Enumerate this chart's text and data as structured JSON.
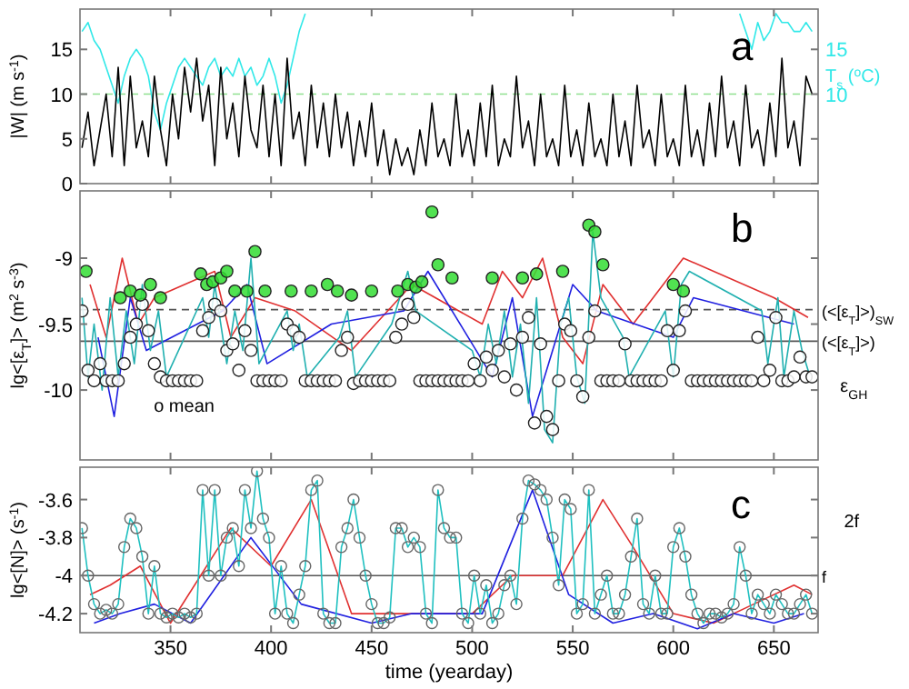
{
  "chart_data": [
    {
      "type": "line",
      "title": "a",
      "ylabel": "|W| (m s$^{-1}$)",
      "y2label": "T$_{s}$ ($^{o}$C)",
      "tick_labels": "y",
      "xlim": [
        305,
        672
      ],
      "xticks": [
        350,
        400,
        450,
        500,
        550,
        600,
        650
      ],
      "ylim": [
        0,
        19.5
      ],
      "yticks": [
        0,
        5,
        10,
        15
      ],
      "y2lim": [
        0,
        19.5
      ],
      "y2ticks": [
        10,
        15
      ],
      "ref_lines": [
        {
          "axis": "y",
          "value": 10,
          "color": "#90e090",
          "line_style": "dashed"
        }
      ],
      "x": [
        306,
        309,
        312,
        315,
        318,
        321,
        324,
        327,
        330,
        333,
        336,
        339,
        342,
        345,
        348,
        351,
        354,
        357,
        360,
        363,
        366,
        369,
        372,
        375,
        378,
        381,
        384,
        387,
        390,
        393,
        396,
        399,
        402,
        405,
        408,
        411,
        414,
        417,
        420,
        423,
        426,
        429,
        432,
        435,
        438,
        441,
        444,
        447,
        450,
        453,
        456,
        459,
        462,
        465,
        468,
        471,
        474,
        477,
        480,
        483,
        486,
        489,
        492,
        495,
        498,
        501,
        504,
        507,
        510,
        513,
        516,
        519,
        522,
        525,
        528,
        531,
        534,
        537,
        540,
        543,
        546,
        549,
        552,
        555,
        558,
        561,
        564,
        567,
        570,
        573,
        576,
        579,
        582,
        585,
        588,
        591,
        594,
        597,
        600,
        603,
        606,
        609,
        612,
        615,
        618,
        621,
        624,
        627,
        630,
        633,
        636,
        639,
        642,
        645,
        648,
        651,
        654,
        657,
        660,
        663,
        666,
        669
      ],
      "series": [
        {
          "axis": "y2",
          "color": "#30e8e8",
          "x": [
            306,
            309,
            312,
            315,
            318,
            321,
            324,
            327,
            330,
            333,
            336,
            339,
            342,
            345,
            348,
            351,
            354,
            357,
            360,
            363,
            366,
            369,
            372,
            375,
            378,
            381,
            384,
            387,
            390,
            393,
            396,
            399,
            402,
            405,
            408,
            411,
            414,
            417,
            420,
            633,
            636,
            639,
            642,
            645,
            648,
            651,
            654,
            657,
            660,
            663,
            666,
            669
          ],
          "values": [
            17,
            18,
            16,
            15,
            13,
            11,
            9,
            12,
            14,
            15,
            14,
            12,
            8,
            6,
            9,
            11,
            13,
            14,
            13,
            12,
            11,
            13,
            14,
            12,
            13,
            12,
            14,
            12,
            13,
            11,
            12,
            14,
            12,
            9,
            11,
            14,
            17,
            19,
            null,
            19,
            17,
            15,
            18,
            16,
            17,
            19,
            18,
            18,
            17,
            17,
            18,
            17
          ]
        },
        {
          "color": "#000000",
          "values": [
            4,
            8,
            2,
            6,
            10,
            3,
            13,
            2,
            12,
            4,
            7,
            3,
            12,
            6,
            2,
            10,
            5,
            13,
            8,
            14,
            7,
            11,
            2,
            13,
            5,
            9,
            3,
            12,
            6,
            4,
            11,
            3,
            10,
            2,
            14,
            5,
            8,
            2,
            11,
            4,
            9,
            3,
            10,
            4,
            8,
            2,
            7,
            3,
            9,
            2,
            6,
            1,
            5,
            2,
            4,
            1,
            6,
            2,
            9,
            3,
            5,
            2,
            10,
            3,
            6,
            2,
            9,
            3,
            11,
            2,
            5,
            3,
            12,
            4,
            7,
            2,
            10,
            3,
            5,
            2,
            11,
            3,
            6,
            2,
            9,
            3,
            5,
            2,
            10,
            3,
            7,
            2,
            11,
            4,
            6,
            2,
            10,
            3,
            5,
            2,
            11,
            3,
            6,
            2,
            9,
            3,
            12,
            4,
            7,
            2,
            11,
            4,
            6,
            2,
            9,
            3,
            14,
            4,
            7,
            2,
            12,
            10
          ]
        }
      ]
    },
    {
      "type": "line",
      "title": "b",
      "ylabel": "lg<[ε$_{T}$]> (m$^{2}$ s$^{-3}$)",
      "tick_labels": "y",
      "xlim": [
        305,
        672
      ],
      "xticks": [
        350,
        400,
        450,
        500,
        550,
        600,
        650
      ],
      "ylim": [
        -10.53,
        -8.49
      ],
      "yticks": [
        -10,
        -9.5,
        -9
      ],
      "ref_lines": [
        {
          "axis": "y",
          "value": -9.39,
          "label": "(<[ε$_{T}$]>)$_{SW}$",
          "color": "#555555",
          "line_style": "dashed"
        },
        {
          "axis": "y",
          "value": -9.63,
          "label": "(<[ε$_{T}$]>)",
          "color": "#555555",
          "line_style": "solid"
        }
      ],
      "annotations": [
        "o mean",
        "ε$_{GH}$"
      ],
      "x": [
        306,
        309,
        312,
        315,
        318,
        321,
        324,
        327,
        330,
        333,
        336,
        339,
        342,
        345,
        348,
        351,
        354,
        357,
        360,
        363,
        366,
        369,
        372,
        375,
        378,
        381,
        384,
        387,
        390,
        393,
        396,
        399,
        402,
        405,
        408,
        411,
        414,
        417,
        420,
        423,
        426,
        429,
        432,
        435,
        438,
        441,
        444,
        447,
        450,
        453,
        456,
        459,
        462,
        465,
        468,
        471,
        474,
        477,
        480,
        483,
        486,
        489,
        492,
        495,
        498,
        501,
        504,
        507,
        510,
        513,
        516,
        519,
        522,
        525,
        528,
        531,
        534,
        537,
        540,
        543,
        546,
        549,
        552,
        555,
        558,
        561,
        564,
        567,
        570,
        573,
        576,
        579,
        582,
        585,
        588,
        591,
        594,
        597,
        600,
        603,
        606,
        609,
        612,
        615,
        618,
        621,
        624,
        627,
        630,
        633,
        636,
        639,
        642,
        645,
        648,
        651,
        654,
        657,
        660,
        663,
        666,
        669
      ],
      "series": [
        {
          "color": "#e03030",
          "x": [
            310,
            318,
            326,
            334,
            342,
            372,
            380,
            392,
            412,
            440,
            470,
            505,
            515,
            525,
            535,
            545,
            555,
            565,
            580,
            605,
            650,
            667
          ],
          "values": [
            -9.2,
            -9.6,
            -9.0,
            -9.5,
            -9.3,
            -9.1,
            -9.6,
            -9.3,
            -9.4,
            -9.7,
            -9.2,
            -9.5,
            -9.1,
            -9.3,
            -9.0,
            -9.6,
            -9.8,
            -9.2,
            -9.5,
            -9.0,
            -9.3,
            -9.45
          ]
        },
        {
          "color": "#2020e0",
          "x": [
            314,
            322,
            330,
            338,
            376,
            388,
            398,
            430,
            466,
            478,
            510,
            520,
            530,
            538,
            550,
            562,
            600,
            610,
            660
          ],
          "values": [
            -9.6,
            -10.2,
            -9.3,
            -9.7,
            -9.4,
            -9.2,
            -9.8,
            -9.5,
            -9.4,
            -9.1,
            -9.9,
            -9.3,
            -10.2,
            -9.8,
            -9.2,
            -9.4,
            -9.6,
            -9.3,
            -9.5
          ]
        },
        {
          "color": "#20b0b0",
          "x": [
            306,
            309,
            312,
            316,
            320,
            324,
            328,
            332,
            336,
            340,
            344,
            348,
            366,
            369,
            372,
            375,
            378,
            382,
            386,
            390,
            394,
            408,
            411,
            414,
            418,
            434,
            438,
            442,
            460,
            464,
            468,
            472,
            500,
            504,
            508,
            512,
            516,
            520,
            524,
            528,
            532,
            536,
            540,
            544,
            548,
            552,
            556,
            560,
            564,
            575,
            578,
            596,
            600,
            604,
            608,
            644,
            647,
            652,
            655,
            660,
            664,
            668
          ],
          "values": [
            -9.3,
            -9.9,
            -9.5,
            -10.0,
            -9.3,
            -9.9,
            -9.4,
            -9.8,
            -9.2,
            -9.7,
            -9.4,
            -9.9,
            -9.3,
            -9.6,
            -9.2,
            -9.5,
            -9.8,
            -9.4,
            -9.7,
            -9.0,
            -9.8,
            -9.4,
            -9.7,
            -9.5,
            -9.9,
            -9.6,
            -9.4,
            -9.9,
            -9.5,
            -9.3,
            -9.1,
            -9.4,
            -9.7,
            -9.9,
            -9.5,
            -9.8,
            -9.4,
            -9.9,
            -9.5,
            -10.1,
            -9.3,
            -10.3,
            -10.4,
            -9.5,
            -9.3,
            -9.9,
            -10.1,
            -8.8,
            -9.3,
            -9.6,
            -9.9,
            -9.4,
            -9.9,
            -9.2,
            -9.1,
            -9.4,
            -9.8,
            -9.3,
            -9.9,
            -9.4,
            -9.7,
            -9.9
          ]
        },
        {
          "type": "scatter",
          "marker": "circle",
          "color": "#ffffff",
          "values": [
            -9.4,
            -9.85,
            -9.93,
            -9.8,
            -9.93,
            -9.93,
            -9.93,
            -9.8,
            -9.6,
            -9.5,
            -9.35,
            -9.55,
            -9.8,
            -9.9,
            -9.93,
            -9.93,
            -9.93,
            -9.93,
            -9.93,
            -9.93,
            -9.55,
            -9.45,
            -9.35,
            -9.4,
            -9.7,
            -9.65,
            -9.85,
            -9.55,
            -9.7,
            -9.93,
            -9.93,
            -9.93,
            -9.93,
            -9.93,
            -9.5,
            -9.55,
            -9.6,
            -9.93,
            -9.93,
            -9.93,
            -9.93,
            -9.93,
            -9.93,
            -9.7,
            -9.6,
            -9.95,
            -9.93,
            -9.93,
            -9.93,
            -9.93,
            -9.93,
            -9.93,
            -9.6,
            -9.5,
            -9.35,
            -9.45,
            -9.93,
            -9.93,
            -9.93,
            -9.93,
            -9.93,
            -9.93,
            -9.93,
            -9.93,
            -9.93,
            -9.8,
            -9.93,
            -9.75,
            -9.85,
            -9.7,
            -9.9,
            -9.65,
            -10.0,
            -9.6,
            -9.45,
            -10.25,
            -9.65,
            -10.2,
            -10.3,
            -9.93,
            -9.5,
            -9.55,
            -9.93,
            -10.05,
            -9.6,
            -9.4,
            -9.93,
            -9.93,
            -9.93,
            -9.93,
            -9.65,
            -9.93,
            -9.93,
            -9.93,
            -9.93,
            -9.93,
            -9.93,
            -9.55,
            -9.85,
            -9.55,
            -9.4,
            -9.93,
            -9.93,
            -9.93,
            -9.93,
            -9.93,
            -9.93,
            -9.93,
            -9.93,
            -9.93,
            -9.93,
            -9.93,
            -9.6,
            -9.93,
            -9.85,
            -9.45,
            -9.93,
            -9.93,
            -9.9,
            -9.75,
            -9.9,
            -9.9
          ]
        },
        {
          "type": "scatter",
          "marker": "circle",
          "color": "#33dd33",
          "x": [
            308,
            325,
            330,
            335,
            340,
            345,
            365,
            368,
            371,
            375,
            378,
            382,
            388,
            392,
            397,
            410,
            420,
            428,
            433,
            440,
            450,
            463,
            468,
            472,
            475,
            480,
            483,
            490,
            510,
            525,
            532,
            545,
            558,
            561,
            565,
            600,
            605
          ],
          "values": [
            -9.1,
            -9.3,
            -9.25,
            -9.28,
            -9.2,
            -9.3,
            -9.12,
            -9.2,
            -9.18,
            -9.15,
            -9.1,
            -9.25,
            -9.25,
            -8.95,
            -9.25,
            -9.25,
            -9.25,
            -9.2,
            -9.25,
            -9.28,
            -9.25,
            -9.25,
            -9.2,
            -9.22,
            -9.18,
            -8.65,
            -9.05,
            -9.15,
            -9.15,
            -9.15,
            -9.12,
            -9.1,
            -8.75,
            -8.8,
            -9.05,
            -9.2,
            -9.25
          ]
        }
      ]
    },
    {
      "type": "line",
      "title": "c",
      "ylabel": "lg<[N]> (s$^{-1}$)",
      "xlabel": "time (yearday)",
      "xlim": [
        305,
        672
      ],
      "xticks": [
        350,
        400,
        450,
        500,
        550,
        600,
        650
      ],
      "ylim": [
        -4.3,
        -3.43
      ],
      "yticks": [
        -4.2,
        -4,
        -3.8,
        -3.6
      ],
      "ref_lines": [
        {
          "axis": "y",
          "value": -4,
          "label": "f",
          "color": "#555555",
          "line_style": "solid"
        }
      ],
      "annotations": [
        "2f"
      ],
      "x": [
        306,
        309,
        312,
        315,
        318,
        321,
        324,
        327,
        330,
        333,
        336,
        339,
        342,
        345,
        348,
        351,
        354,
        357,
        360,
        363,
        366,
        369,
        372,
        375,
        378,
        381,
        384,
        387,
        390,
        393,
        396,
        399,
        402,
        405,
        408,
        411,
        414,
        417,
        420,
        423,
        426,
        429,
        432,
        435,
        438,
        441,
        444,
        447,
        450,
        453,
        456,
        459,
        462,
        465,
        468,
        471,
        474,
        477,
        480,
        483,
        486,
        489,
        492,
        495,
        498,
        501,
        504,
        507,
        510,
        513,
        516,
        519,
        522,
        525,
        528,
        531,
        534,
        537,
        540,
        543,
        546,
        549,
        552,
        555,
        558,
        561,
        564,
        567,
        570,
        573,
        576,
        579,
        582,
        585,
        588,
        591,
        594,
        597,
        600,
        603,
        606,
        609,
        612,
        615,
        618,
        621,
        624,
        627,
        630,
        633,
        636,
        639,
        642,
        645,
        648,
        651,
        654,
        657,
        660,
        663,
        666,
        669
      ],
      "series": [
        {
          "color": "#e03030",
          "x": [
            310,
            320,
            335,
            350,
            380,
            400,
            420,
            440,
            460,
            500,
            520,
            545,
            565,
            580,
            600,
            620,
            640,
            660,
            669
          ],
          "values": [
            -4.1,
            -4.05,
            -3.95,
            -4.25,
            -3.75,
            -3.95,
            -3.6,
            -4.2,
            -4.2,
            -4.2,
            -4.0,
            -4.0,
            -3.6,
            -3.85,
            -4.2,
            -4.25,
            -4.15,
            -4.05,
            -4.1
          ]
        },
        {
          "color": "#2020e0",
          "x": [
            312,
            325,
            342,
            360,
            390,
            415,
            450,
            470,
            505,
            530,
            548,
            570,
            590,
            612,
            630,
            650,
            665
          ],
          "values": [
            -4.25,
            -4.2,
            -4.15,
            -4.25,
            -3.8,
            -4.15,
            -4.25,
            -4.2,
            -4.2,
            -3.55,
            -4.1,
            -4.25,
            -4.2,
            -4.28,
            -4.2,
            -4.25,
            -4.2
          ]
        },
        {
          "color": "#20c0c0",
          "marker": "circle",
          "values": [
            -3.75,
            -4.0,
            -4.15,
            -4.2,
            -4.18,
            -4.2,
            -4.15,
            -3.85,
            -3.7,
            -3.75,
            -3.9,
            -4.2,
            -3.95,
            -4.2,
            -4.22,
            -4.2,
            -4.22,
            -4.2,
            -4.22,
            -4.2,
            -3.55,
            -4.0,
            -3.55,
            -4.0,
            -3.8,
            -3.75,
            -3.95,
            -3.55,
            -3.75,
            -3.45,
            -3.7,
            -3.8,
            -4.2,
            -3.95,
            -4.2,
            -4.25,
            -4.1,
            -3.95,
            -3.55,
            -3.5,
            -4.2,
            -4.25,
            -4.25,
            -3.85,
            -3.75,
            -3.6,
            -3.8,
            -4.0,
            -4.15,
            -4.25,
            -4.25,
            -4.22,
            -3.75,
            -3.75,
            -3.85,
            -3.8,
            -3.85,
            -4.2,
            -4.25,
            -3.55,
            -3.75,
            -3.8,
            -3.8,
            -4.2,
            -4.25,
            -4.0,
            -4.2,
            -4.05,
            -4.25,
            -4.2,
            -4.05,
            -4.0,
            -4.15,
            -3.7,
            -3.5,
            -3.52,
            -3.55,
            -3.6,
            -3.8,
            -4.05,
            -3.6,
            -3.65,
            -4.2,
            -4.15,
            -3.55,
            -4.2,
            -4.1,
            -4.0,
            -4.2,
            -4.2,
            -4.1,
            -3.9,
            -3.7,
            -4.15,
            -4.2,
            -4.0,
            -4.2,
            -4.2,
            -3.85,
            -3.75,
            -3.9,
            -4.1,
            -4.2,
            -4.25,
            -4.2,
            -4.2,
            -4.22,
            -4.2,
            -4.15,
            -3.85,
            -4.0,
            -4.2,
            -4.1,
            -4.15,
            -4.2,
            -4.1,
            -4.15,
            -4.2,
            -4.2,
            -4.15,
            -4.1,
            -4.2
          ]
        }
      ]
    }
  ]
}
